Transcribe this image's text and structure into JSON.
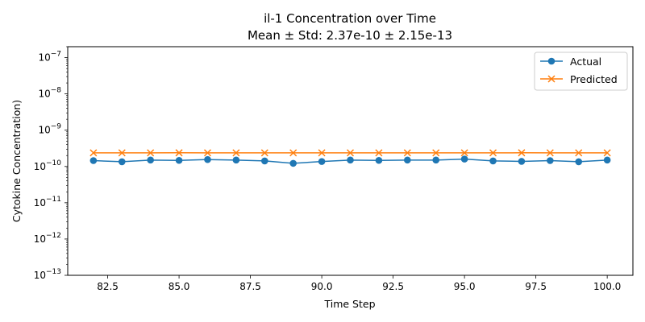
{
  "chart_data": {
    "type": "line",
    "title_line1": "il-1 Concentration over Time",
    "title_line2": "Mean ± Std: 2.37e-10 ± 2.15e-13",
    "xlabel": "Time Step",
    "ylabel": "Cytokine Concentration)",
    "yscale": "log",
    "xlim": [
      81.1,
      100.9
    ],
    "ylim": [
      1e-13,
      2e-07
    ],
    "x_ticks": [
      82.5,
      85.0,
      87.5,
      90.0,
      92.5,
      95.0,
      97.5,
      100.0
    ],
    "x_tick_labels": [
      "82.5",
      "85.0",
      "87.5",
      "90.0",
      "92.5",
      "95.0",
      "97.5",
      "100.0"
    ],
    "y_ticks": [
      1e-13,
      1e-12,
      1e-11,
      1e-10,
      1e-09,
      1e-08,
      1e-07
    ],
    "y_tick_labels": [
      {
        "base": "10",
        "exp": "−13"
      },
      {
        "base": "10",
        "exp": "−12"
      },
      {
        "base": "10",
        "exp": "−11"
      },
      {
        "base": "10",
        "exp": "−10"
      },
      {
        "base": "10",
        "exp": "−9"
      },
      {
        "base": "10",
        "exp": "−8"
      },
      {
        "base": "10",
        "exp": "−7"
      }
    ],
    "grid": false,
    "legend_position": "top-right",
    "x": [
      82,
      83,
      84,
      85,
      86,
      87,
      88,
      89,
      90,
      91,
      92,
      93,
      94,
      95,
      96,
      97,
      98,
      99,
      100
    ],
    "series": [
      {
        "name": "Actual",
        "color": "#1f77b4",
        "marker": "circle",
        "values": [
          1.45e-10,
          1.35e-10,
          1.5e-10,
          1.47e-10,
          1.55e-10,
          1.5e-10,
          1.42e-10,
          1.22e-10,
          1.37e-10,
          1.5e-10,
          1.47e-10,
          1.5e-10,
          1.5e-10,
          1.6e-10,
          1.42e-10,
          1.38e-10,
          1.45e-10,
          1.35e-10,
          1.5e-10
        ]
      },
      {
        "name": "Predicted",
        "color": "#ff7f0e",
        "marker": "x",
        "values": [
          2.37e-10,
          2.37e-10,
          2.37e-10,
          2.38e-10,
          2.37e-10,
          2.37e-10,
          2.37e-10,
          2.37e-10,
          2.37e-10,
          2.37e-10,
          2.37e-10,
          2.37e-10,
          2.37e-10,
          2.37e-10,
          2.37e-10,
          2.38e-10,
          2.37e-10,
          2.37e-10,
          2.37e-10
        ]
      }
    ]
  }
}
